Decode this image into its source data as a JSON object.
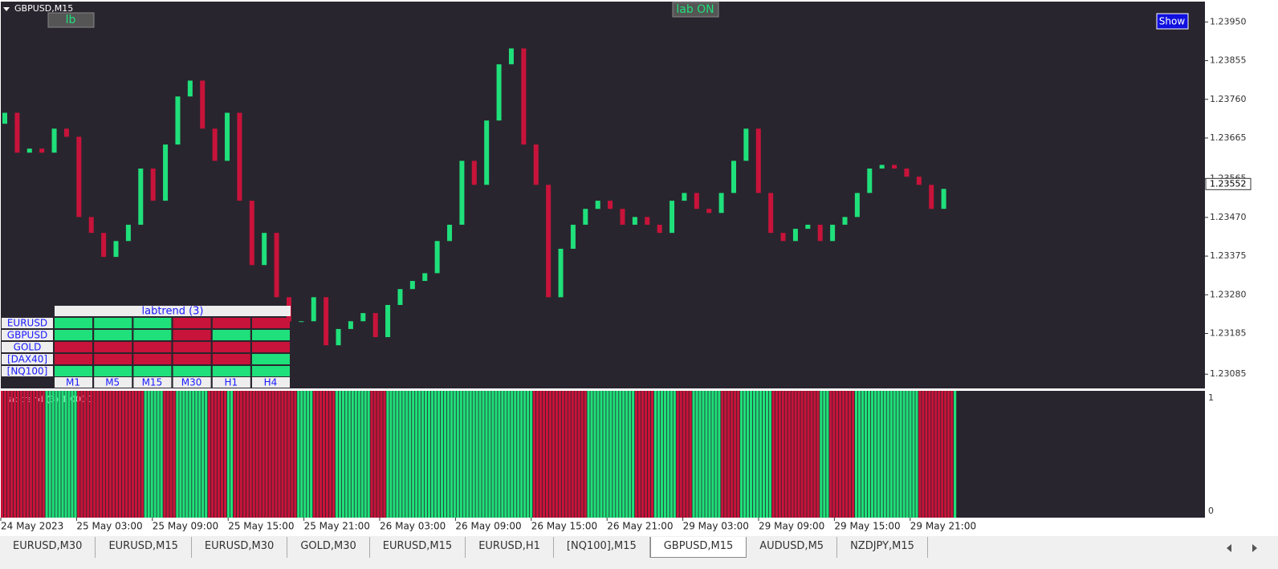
{
  "window": {
    "symbol": "GBPUSD,M15",
    "buttons": {
      "lb": "lb",
      "lab_on": "lab ON",
      "show": "Show"
    }
  },
  "chart_data": {
    "type": "candlestick",
    "open": [
      1.237,
      1.23727,
      1.23629,
      1.23639,
      1.23629,
      1.23688,
      1.23668,
      1.23471,
      1.23432,
      1.23373,
      1.23412,
      1.23452,
      1.2359,
      1.23511,
      1.23649,
      1.23767,
      1.23806,
      1.23688,
      1.23609,
      1.23727,
      1.23511,
      1.23353,
      1.23432,
      1.23274,
      1.23215,
      1.23215,
      1.23274,
      1.23156,
      1.23196,
      1.23215,
      1.23235,
      1.23176,
      1.23255,
      1.23294,
      1.23314,
      1.23333,
      1.23412,
      1.23452,
      1.23609,
      1.2355,
      1.23708,
      1.23846,
      1.23885,
      1.23649,
      1.2355,
      1.23274,
      1.23393,
      1.23452,
      1.23491,
      1.23511,
      1.23491,
      1.23452,
      1.23471,
      1.23452,
      1.23432,
      1.23511,
      1.2353,
      1.23491,
      1.23481,
      1.2353,
      1.23609,
      1.23688,
      1.2353,
      1.23432,
      1.23412,
      1.23442,
      1.23452,
      1.23412,
      1.23452,
      1.23471,
      1.2353,
      1.2359,
      1.23599,
      1.2359,
      1.2357,
      1.2355,
      1.23491
    ],
    "close": [
      1.23727,
      1.23629,
      1.23639,
      1.23629,
      1.23688,
      1.23668,
      1.23471,
      1.23432,
      1.23373,
      1.23412,
      1.23452,
      1.2359,
      1.23511,
      1.23649,
      1.23767,
      1.23806,
      1.23688,
      1.23609,
      1.23727,
      1.23511,
      1.23353,
      1.23432,
      1.23274,
      1.23215,
      1.23215,
      1.23274,
      1.23156,
      1.23196,
      1.23215,
      1.23235,
      1.23176,
      1.23255,
      1.23294,
      1.23314,
      1.23333,
      1.23412,
      1.23452,
      1.23609,
      1.2355,
      1.23708,
      1.23846,
      1.23885,
      1.23649,
      1.2355,
      1.23274,
      1.23393,
      1.23452,
      1.23491,
      1.23511,
      1.23491,
      1.23452,
      1.23471,
      1.23452,
      1.23432,
      1.23511,
      1.2353,
      1.23491,
      1.23481,
      1.2353,
      1.23609,
      1.23688,
      1.2353,
      1.23432,
      1.23412,
      1.23442,
      1.23452,
      1.23412,
      1.23452,
      1.23471,
      1.2353,
      1.2359,
      1.23599,
      1.2359,
      1.2357,
      1.2355,
      1.23491,
      1.2354
    ],
    "up_color": "#1fe07a",
    "down_color": "#c8133a",
    "ylim": [
      1.2305,
      1.24
    ],
    "yticks": [
      {
        "value": 1.2395,
        "label": "1.23950"
      },
      {
        "value": 1.23855,
        "label": "1.23855"
      },
      {
        "value": 1.2376,
        "label": "1.23760"
      },
      {
        "value": 1.23665,
        "label": "1.23665"
      },
      {
        "value": 1.23565,
        "label": "1.23565"
      },
      {
        "value": 1.2347,
        "label": "1.23470"
      },
      {
        "value": 1.23375,
        "label": "1.23375"
      },
      {
        "value": 1.2328,
        "label": "1.23280"
      },
      {
        "value": 1.23185,
        "label": "1.23185"
      },
      {
        "value": 1.23085,
        "label": "1.23085"
      }
    ],
    "current_price": {
      "value": 1.23552,
      "label": "1.23552"
    },
    "x_labels": [
      "24 May 2023",
      "25 May 03:00",
      "25 May 09:00",
      "25 May 15:00",
      "25 May 21:00",
      "26 May 03:00",
      "26 May 09:00",
      "26 May 15:00",
      "26 May 21:00",
      "29 May 03:00",
      "29 May 09:00",
      "29 May 15:00",
      "29 May 21:00"
    ]
  },
  "indicator": {
    "label": "labtrend (3) 1.0000",
    "yticks": [
      "1",
      "0"
    ],
    "segments": [
      {
        "direction": "down",
        "bars": 14
      },
      {
        "direction": "up",
        "bars": 10
      },
      {
        "direction": "down",
        "bars": 21
      },
      {
        "direction": "up",
        "bars": 6
      },
      {
        "direction": "down",
        "bars": 4
      },
      {
        "direction": "up",
        "bars": 10
      },
      {
        "direction": "down",
        "bars": 6
      },
      {
        "direction": "up",
        "bars": 2
      },
      {
        "direction": "down",
        "bars": 20
      },
      {
        "direction": "up",
        "bars": 5
      },
      {
        "direction": "down",
        "bars": 7
      },
      {
        "direction": "up",
        "bars": 11
      },
      {
        "direction": "down",
        "bars": 5
      },
      {
        "direction": "up",
        "bars": 46
      },
      {
        "direction": "down",
        "bars": 17
      },
      {
        "direction": "up",
        "bars": 15
      },
      {
        "direction": "down",
        "bars": 6
      },
      {
        "direction": "up",
        "bars": 7
      },
      {
        "direction": "down",
        "bars": 5
      },
      {
        "direction": "up",
        "bars": 9
      },
      {
        "direction": "down",
        "bars": 6
      },
      {
        "direction": "up",
        "bars": 10
      },
      {
        "direction": "down",
        "bars": 15
      },
      {
        "direction": "up",
        "bars": 3
      },
      {
        "direction": "down",
        "bars": 8
      },
      {
        "direction": "up",
        "bars": 20
      },
      {
        "direction": "down",
        "bars": 11
      },
      {
        "direction": "up",
        "bars": 1
      }
    ]
  },
  "panel": {
    "title": "labtrend (3)",
    "rows": [
      "EURUSD",
      "GBPUSD",
      "GOLD",
      "[DAX40]",
      "[NQ100]"
    ],
    "columns": [
      "M1",
      "M5",
      "M15",
      "M30",
      "H1",
      "H4"
    ],
    "states": [
      [
        "up",
        "up",
        "up",
        "down",
        "down",
        "down"
      ],
      [
        "up",
        "up",
        "up",
        "down",
        "up",
        "up"
      ],
      [
        "down",
        "down",
        "down",
        "down",
        "down",
        "down"
      ],
      [
        "down",
        "down",
        "down",
        "down",
        "down",
        "up"
      ],
      [
        "up",
        "up",
        "up",
        "up",
        "up",
        "up"
      ]
    ]
  },
  "tabs": {
    "items": [
      "EURUSD,M30",
      "EURUSD,M15",
      "EURUSD,M30",
      "GOLD,M30",
      "EURUSD,M15",
      "EURUSD,H1",
      "[NQ100],M15",
      "GBPUSD,M15",
      "AUDUSD,M5",
      "NZDJPY,M15"
    ],
    "active": 7
  }
}
